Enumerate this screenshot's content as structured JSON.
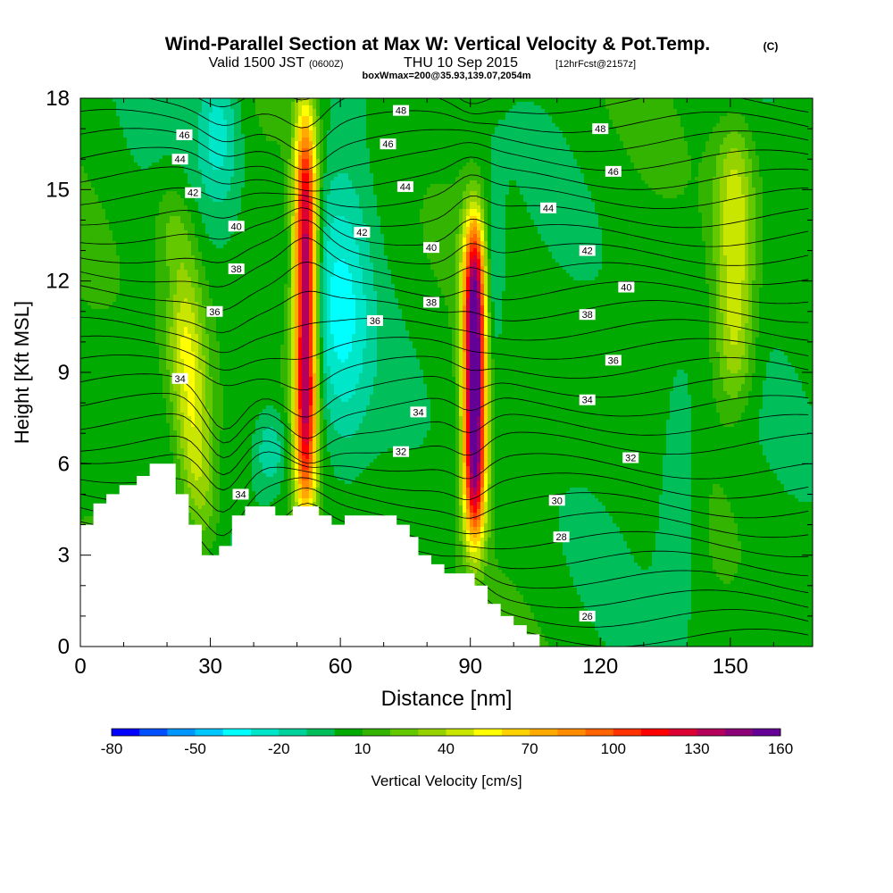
{
  "chart_data": {
    "type": "heatmap",
    "title": "Wind-Parallel Section at Max W: Vertical Velocity & Pot.Temp.",
    "copyright": "(C)",
    "subtitle_main": "Valid 1500 JST",
    "subtitle_utc": "(0600Z)",
    "subtitle_date": "THU 10 Sep 2015",
    "subtitle_fcst": "[12hrFcst@2157z]",
    "box_info": "boxWmax=200@35.93,139.07,2054m",
    "xlabel": "Distance [nm]",
    "ylabel": "Height [Kft MSL]",
    "xlim": [
      0,
      169
    ],
    "ylim": [
      0,
      18
    ],
    "x_ticks": [
      "0",
      "30",
      "60",
      "90",
      "120",
      "150"
    ],
    "x_tick_values": [
      0,
      30,
      60,
      90,
      120,
      150
    ],
    "y_ticks": [
      "0",
      "3",
      "6",
      "9",
      "12",
      "15",
      "18"
    ],
    "y_tick_values": [
      0,
      3,
      6,
      9,
      12,
      15,
      18
    ],
    "colorbar_label": "Vertical Velocity [cm/s]",
    "colorbar_tick_labels": [
      "-80",
      "-50",
      "-20",
      "10",
      "40",
      "70",
      "100",
      "130",
      "160"
    ],
    "colorbar_colors": [
      "#0000ff",
      "#0050ff",
      "#0096ff",
      "#00c8ff",
      "#00ffff",
      "#00e6c8",
      "#00d29b",
      "#00be5a",
      "#00aa00",
      "#32b400",
      "#64c800",
      "#96d200",
      "#c8e600",
      "#ffff00",
      "#ffd200",
      "#ffaa00",
      "#ff8c00",
      "#ff6400",
      "#ff3200",
      "#ff0000",
      "#dc0032",
      "#b4005a",
      "#8c0078",
      "#640096"
    ],
    "velocity_features": [
      {
        "center_x": 25,
        "base_y": 3.5,
        "top_y": 14.5,
        "peak": 50
      },
      {
        "center_x": 52,
        "base_y": 4.5,
        "top_y": 17.5,
        "peak": 140
      },
      {
        "center_x": 91,
        "base_y": 3.5,
        "top_y": 14,
        "peak": 165
      },
      {
        "center_x": 151,
        "base_y": 8,
        "top_y": 17,
        "peak": 45
      }
    ],
    "terrain": [
      [
        0,
        4
      ],
      [
        3,
        4
      ],
      [
        3,
        4.7
      ],
      [
        6,
        4.7
      ],
      [
        6,
        5
      ],
      [
        9,
        5
      ],
      [
        9,
        5.3
      ],
      [
        10,
        5.3
      ],
      [
        10,
        5.3
      ],
      [
        13,
        5.3
      ],
      [
        13,
        5.6
      ],
      [
        16,
        5.6
      ],
      [
        16,
        6
      ],
      [
        22,
        6
      ],
      [
        22,
        5
      ],
      [
        25,
        5
      ],
      [
        25,
        4
      ],
      [
        28,
        4
      ],
      [
        28,
        3
      ],
      [
        32,
        3
      ],
      [
        32,
        3.3
      ],
      [
        35,
        3.3
      ],
      [
        35,
        4.3
      ],
      [
        38,
        4.3
      ],
      [
        38,
        4.6
      ],
      [
        45,
        4.6
      ],
      [
        45,
        4.3
      ],
      [
        49,
        4.3
      ],
      [
        49,
        4.6
      ],
      [
        55,
        4.6
      ],
      [
        55,
        4.3
      ],
      [
        58,
        4.3
      ],
      [
        58,
        4
      ],
      [
        61,
        4
      ],
      [
        61,
        4.3
      ],
      [
        73,
        4.3
      ],
      [
        73,
        4
      ],
      [
        76,
        4
      ],
      [
        76,
        3.6
      ],
      [
        78,
        3.6
      ],
      [
        78,
        3
      ],
      [
        81,
        3
      ],
      [
        81,
        2.7
      ],
      [
        84,
        2.7
      ],
      [
        84,
        2.4
      ],
      [
        91,
        2.4
      ],
      [
        91,
        2
      ],
      [
        94,
        2
      ],
      [
        94,
        1.4
      ],
      [
        97,
        1.4
      ],
      [
        97,
        1
      ],
      [
        100,
        1
      ],
      [
        100,
        0.7
      ],
      [
        103,
        0.7
      ],
      [
        103,
        0.4
      ],
      [
        106,
        0.4
      ],
      [
        106,
        0
      ],
      [
        0,
        0
      ]
    ],
    "contour_labels": [
      {
        "text": "48",
        "x": 74,
        "y": 17.6
      },
      {
        "text": "48",
        "x": 120,
        "y": 17
      },
      {
        "text": "46",
        "x": 24,
        "y": 16.8
      },
      {
        "text": "46",
        "x": 71,
        "y": 16.5
      },
      {
        "text": "46",
        "x": 123,
        "y": 15.6
      },
      {
        "text": "44",
        "x": 23,
        "y": 16
      },
      {
        "text": "44",
        "x": 75,
        "y": 15.1
      },
      {
        "text": "44",
        "x": 108,
        "y": 14.4
      },
      {
        "text": "42",
        "x": 26,
        "y": 14.9
      },
      {
        "text": "42",
        "x": 65,
        "y": 13.6
      },
      {
        "text": "42",
        "x": 117,
        "y": 13
      },
      {
        "text": "40",
        "x": 36,
        "y": 13.8
      },
      {
        "text": "40",
        "x": 81,
        "y": 13.1
      },
      {
        "text": "40",
        "x": 126,
        "y": 11.8
      },
      {
        "text": "38",
        "x": 36,
        "y": 12.4
      },
      {
        "text": "38",
        "x": 81,
        "y": 11.3
      },
      {
        "text": "38",
        "x": 117,
        "y": 10.9
      },
      {
        "text": "36",
        "x": 31,
        "y": 11
      },
      {
        "text": "36",
        "x": 68,
        "y": 10.7
      },
      {
        "text": "36",
        "x": 123,
        "y": 9.4
      },
      {
        "text": "34",
        "x": 23,
        "y": 8.8
      },
      {
        "text": "34",
        "x": 78,
        "y": 7.7
      },
      {
        "text": "34",
        "x": 117,
        "y": 8.1
      },
      {
        "text": "34",
        "x": 37,
        "y": 5
      },
      {
        "text": "32",
        "x": 74,
        "y": 6.4
      },
      {
        "text": "32",
        "x": 127,
        "y": 6.2
      },
      {
        "text": "30",
        "x": 110,
        "y": 4.8
      },
      {
        "text": "28",
        "x": 111,
        "y": 3.6
      },
      {
        "text": "26",
        "x": 117,
        "y": 1
      }
    ]
  }
}
